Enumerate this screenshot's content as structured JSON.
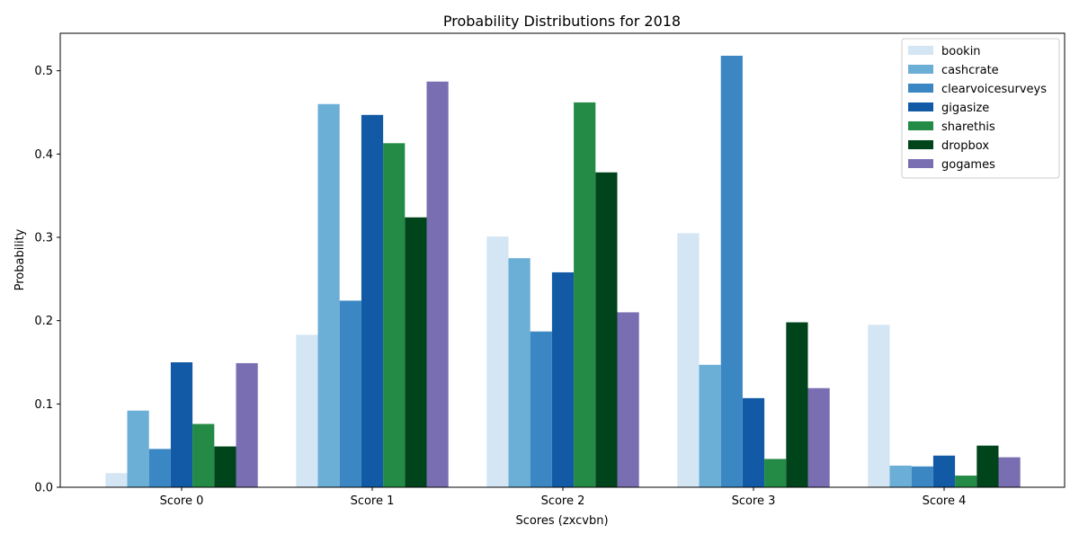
{
  "chart_data": {
    "type": "bar",
    "title": "Probability Distributions for 2018",
    "xlabel": "Scores (zxcvbn)",
    "ylabel": "Probability",
    "categories": [
      "Score 0",
      "Score 1",
      "Score 2",
      "Score 3",
      "Score 4"
    ],
    "ylim": [
      0,
      0.545
    ],
    "yticks": [
      0.0,
      0.1,
      0.2,
      0.3,
      0.4,
      0.5
    ],
    "ytick_labels": [
      "0.0",
      "0.1",
      "0.2",
      "0.3",
      "0.4",
      "0.5"
    ],
    "grid": false,
    "legend_position": "top-right",
    "series": [
      {
        "name": "bookin",
        "color": "#d4e5f4",
        "values": [
          0.017,
          0.183,
          0.301,
          0.305,
          0.195
        ]
      },
      {
        "name": "cashcrate",
        "color": "#6baed6",
        "values": [
          0.092,
          0.46,
          0.275,
          0.147,
          0.026
        ]
      },
      {
        "name": "clearvoicesurveys",
        "color": "#3a87c3",
        "values": [
          0.046,
          0.224,
          0.187,
          0.518,
          0.025
        ]
      },
      {
        "name": "gigasize",
        "color": "#135aa6",
        "values": [
          0.15,
          0.447,
          0.258,
          0.107,
          0.038
        ]
      },
      {
        "name": "sharethis",
        "color": "#238b45",
        "values": [
          0.076,
          0.413,
          0.462,
          0.034,
          0.014
        ]
      },
      {
        "name": "dropbox",
        "color": "#00441b",
        "values": [
          0.049,
          0.324,
          0.378,
          0.198,
          0.05
        ]
      },
      {
        "name": "gogames",
        "color": "#7a6eb2",
        "values": [
          0.149,
          0.487,
          0.21,
          0.119,
          0.036
        ]
      }
    ]
  }
}
